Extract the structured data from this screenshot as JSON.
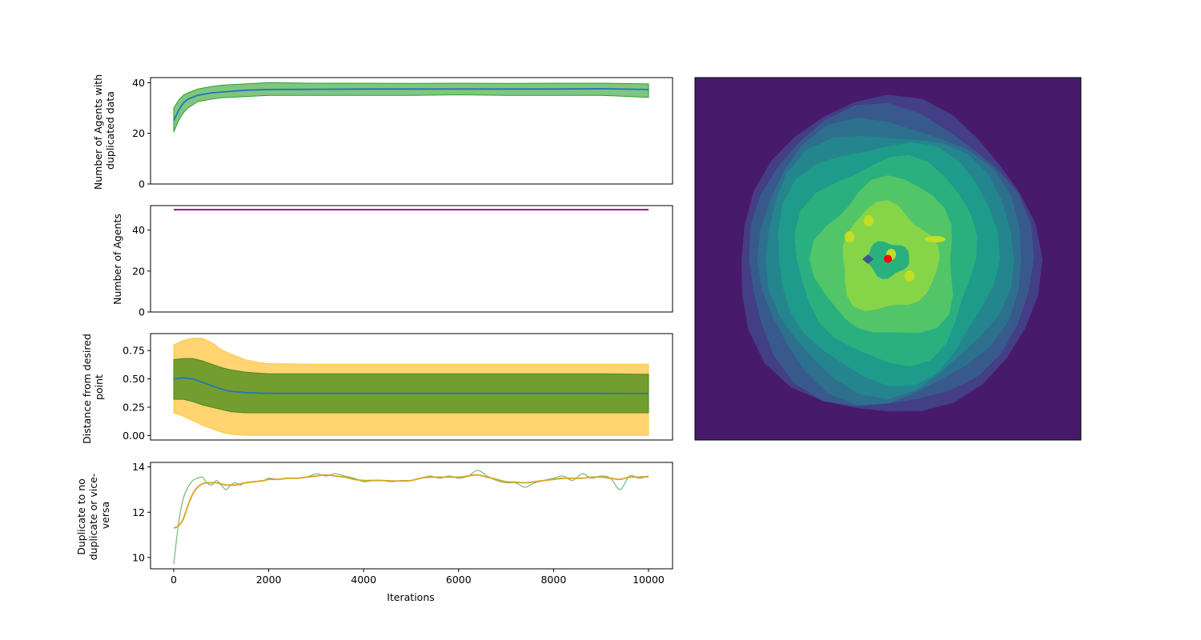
{
  "chart_data": [
    {
      "type": "line",
      "ylabel": [
        "Number of Agents with",
        "duplicated data"
      ],
      "xlim": [
        0,
        10000
      ],
      "ylim": [
        0,
        42
      ],
      "yticks": [
        0,
        20,
        40
      ],
      "colors": {
        "line": "#1f77b4",
        "band": "#2ca02c"
      },
      "x": [
        0,
        100,
        200,
        300,
        500,
        800,
        1000,
        1500,
        2000,
        3000,
        4000,
        5000,
        6000,
        7000,
        8000,
        9000,
        10000
      ],
      "series": [
        {
          "role": "mean",
          "values": [
            25,
            29,
            32,
            33.5,
            35,
            36,
            36.3,
            37,
            37.3,
            37.4,
            37.5,
            37.5,
            37.5,
            37.5,
            37.5,
            37.6,
            37.3
          ]
        },
        {
          "role": "upper",
          "values": [
            30,
            33,
            35,
            36,
            37.5,
            38.5,
            39,
            39.5,
            40,
            39.8,
            39.8,
            39.7,
            39.8,
            39.7,
            39.8,
            39.8,
            39.5
          ]
        },
        {
          "role": "lower",
          "values": [
            20.5,
            25,
            28,
            30,
            32.5,
            33.5,
            34,
            34.5,
            35,
            35,
            35,
            35,
            35.2,
            35,
            35,
            35,
            34.2
          ]
        }
      ]
    },
    {
      "type": "line",
      "ylabel": [
        "Number of Agents"
      ],
      "xlim": [
        0,
        10000
      ],
      "ylim": [
        0,
        52
      ],
      "yticks": [
        0,
        20,
        40
      ],
      "colors": {
        "line": "#800080"
      },
      "x": [
        0,
        10000
      ],
      "series": [
        {
          "values": [
            50,
            50
          ]
        }
      ]
    },
    {
      "type": "line",
      "ylabel": [
        "Distance from desired",
        "point"
      ],
      "xlim": [
        0,
        10000
      ],
      "ylim": [
        -0.04,
        0.9
      ],
      "yticks": [
        "0.00",
        "0.25",
        "0.50",
        "0.75"
      ],
      "colors": {
        "line": "#1f77b4",
        "inner_band": "#6b9a2a",
        "outer_band": "#ffc94d"
      },
      "x": [
        0,
        200,
        400,
        600,
        800,
        1000,
        1200,
        1500,
        1800,
        2000,
        3000,
        4000,
        5000,
        6000,
        7000,
        8000,
        9000,
        10000
      ],
      "series": [
        {
          "role": "mean",
          "values": [
            0.5,
            0.51,
            0.5,
            0.47,
            0.44,
            0.41,
            0.39,
            0.38,
            0.375,
            0.372,
            0.372,
            0.372,
            0.372,
            0.372,
            0.372,
            0.372,
            0.372,
            0.37
          ]
        },
        {
          "role": "inner_upper",
          "values": [
            0.67,
            0.68,
            0.68,
            0.66,
            0.63,
            0.6,
            0.58,
            0.56,
            0.55,
            0.545,
            0.545,
            0.545,
            0.545,
            0.545,
            0.545,
            0.545,
            0.545,
            0.54
          ]
        },
        {
          "role": "inner_lower",
          "values": [
            0.32,
            0.32,
            0.3,
            0.27,
            0.25,
            0.23,
            0.21,
            0.2,
            0.2,
            0.2,
            0.2,
            0.2,
            0.2,
            0.2,
            0.2,
            0.2,
            0.2,
            0.2
          ]
        },
        {
          "role": "outer_upper",
          "values": [
            0.8,
            0.84,
            0.86,
            0.86,
            0.82,
            0.76,
            0.72,
            0.67,
            0.645,
            0.635,
            0.63,
            0.63,
            0.63,
            0.63,
            0.63,
            0.63,
            0.63,
            0.63
          ]
        },
        {
          "role": "outer_lower",
          "values": [
            0.2,
            0.17,
            0.13,
            0.09,
            0.06,
            0.03,
            0.01,
            0.0,
            0.0,
            0.0,
            0.0,
            0.0,
            0.0,
            0.0,
            0.0,
            0.0,
            0.0,
            0.0
          ]
        }
      ]
    },
    {
      "type": "line",
      "ylabel": [
        "Duplicate to no",
        "duplicate or vice-",
        "versa"
      ],
      "xlabel": "Iterations",
      "xlim": [
        0,
        10000
      ],
      "ylim": [
        9.5,
        14.2
      ],
      "yticks": [
        10,
        12,
        14
      ],
      "xticks": [
        0,
        2000,
        4000,
        6000,
        8000,
        10000
      ],
      "colors": {
        "raw": "#7fbf7f",
        "smooth": "#ff7f0e",
        "smooth2": "#bcbd22"
      },
      "x": [
        0,
        100,
        200,
        300,
        400,
        500,
        600,
        700,
        800,
        900,
        1000,
        1100,
        1200,
        1300,
        1400,
        1500,
        1700,
        1900,
        2000,
        2200,
        2400,
        2600,
        2800,
        3000,
        3200,
        3400,
        3600,
        3800,
        4000,
        4200,
        4400,
        4600,
        4800,
        5000,
        5200,
        5400,
        5600,
        5800,
        6000,
        6200,
        6400,
        6600,
        6800,
        7000,
        7200,
        7400,
        7600,
        7800,
        8000,
        8200,
        8400,
        8600,
        8800,
        9000,
        9200,
        9400,
        9600,
        9800,
        10000
      ],
      "series": [
        {
          "role": "raw",
          "values": [
            9.7,
            11.5,
            12.6,
            13.1,
            13.4,
            13.5,
            13.55,
            13.3,
            13.2,
            13.4,
            13.2,
            13.0,
            13.2,
            13.3,
            13.2,
            13.3,
            13.35,
            13.4,
            13.5,
            13.45,
            13.5,
            13.5,
            13.55,
            13.7,
            13.6,
            13.7,
            13.6,
            13.5,
            13.35,
            13.4,
            13.4,
            13.35,
            13.4,
            13.4,
            13.5,
            13.6,
            13.5,
            13.6,
            13.5,
            13.6,
            13.85,
            13.6,
            13.4,
            13.3,
            13.3,
            13.1,
            13.3,
            13.4,
            13.5,
            13.6,
            13.4,
            13.7,
            13.5,
            13.6,
            13.5,
            13.0,
            13.6,
            13.5,
            13.6
          ]
        },
        {
          "role": "smooth",
          "values": [
            11.3,
            11.4,
            11.7,
            12.3,
            12.8,
            13.1,
            13.25,
            13.3,
            13.3,
            13.3,
            13.25,
            13.2,
            13.2,
            13.2,
            13.25,
            13.3,
            13.35,
            13.4,
            13.45,
            13.45,
            13.5,
            13.5,
            13.55,
            13.6,
            13.65,
            13.6,
            13.55,
            13.45,
            13.4,
            13.4,
            13.4,
            13.38,
            13.38,
            13.4,
            13.5,
            13.55,
            13.55,
            13.55,
            13.55,
            13.6,
            13.65,
            13.55,
            13.45,
            13.35,
            13.33,
            13.3,
            13.35,
            13.4,
            13.45,
            13.5,
            13.5,
            13.5,
            13.55,
            13.55,
            13.5,
            13.45,
            13.55,
            13.55,
            13.57
          ]
        }
      ]
    },
    {
      "type": "heatmap",
      "colors": {
        "background": "#481a6c",
        "marker": "#ff0000"
      },
      "levels": [
        "#481a6c",
        "#433e85",
        "#38598c",
        "#2d708e",
        "#25858e",
        "#1e9b8a",
        "#2ab07f",
        "#52c569",
        "#86d549",
        "#c2df23",
        "#fde725"
      ],
      "marker": {
        "x": 0.5,
        "y": 0.5
      }
    }
  ]
}
